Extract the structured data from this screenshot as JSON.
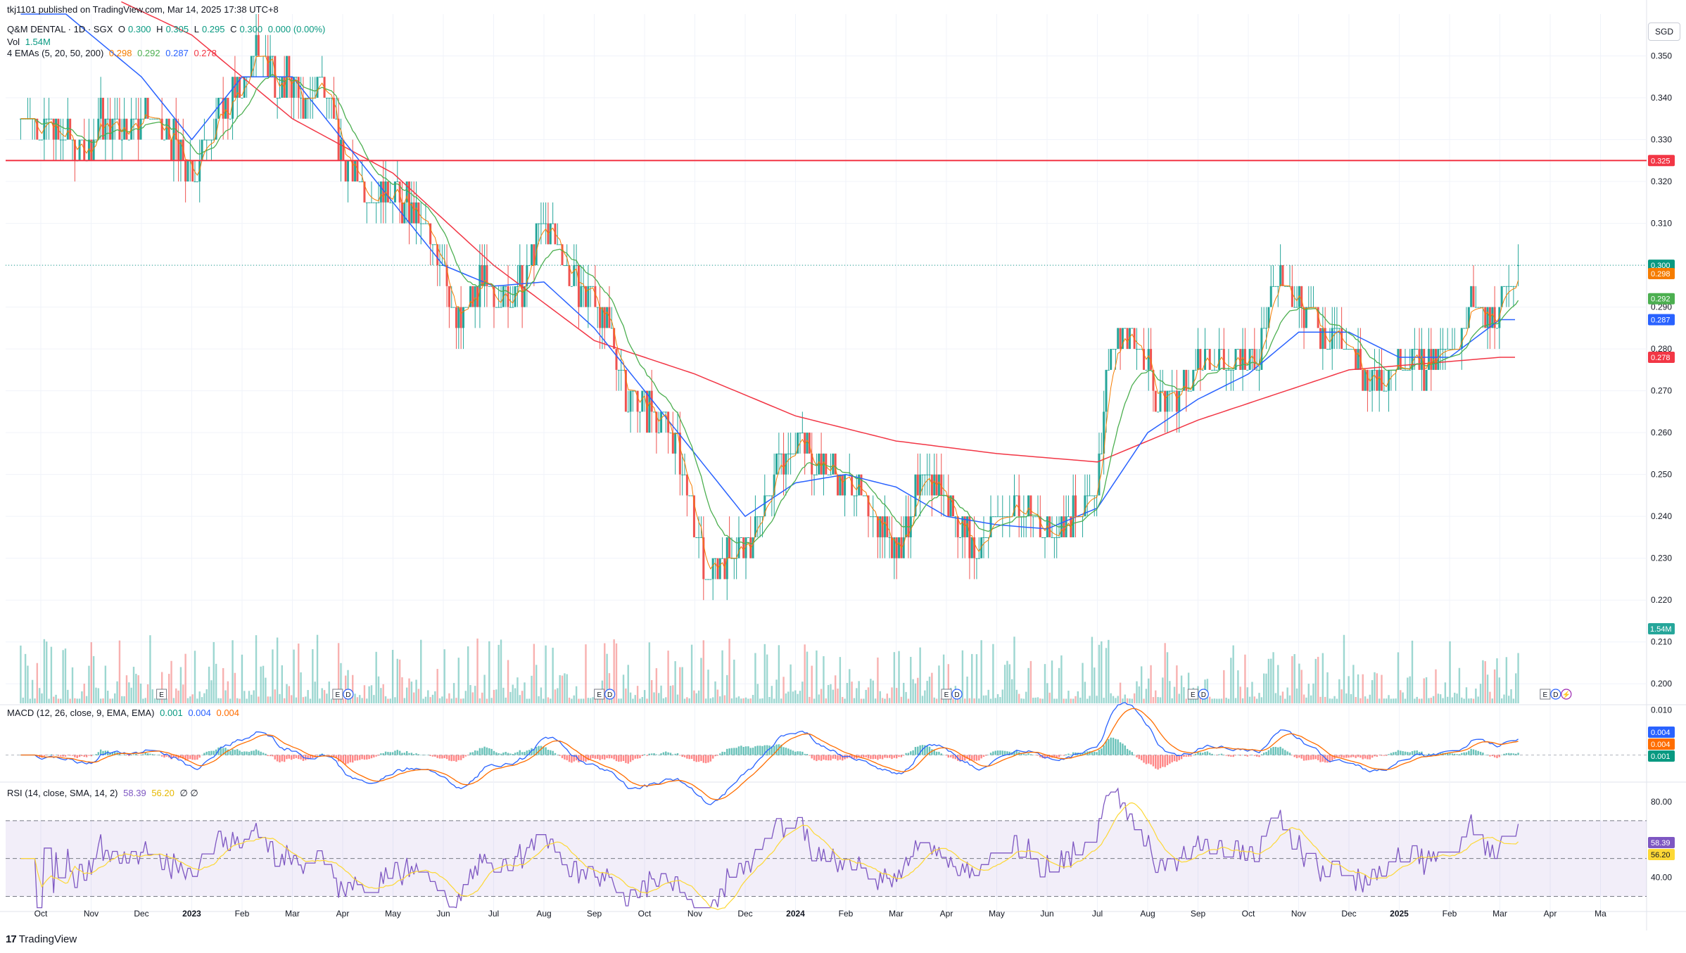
{
  "header": {
    "attribution": "tkj1101 published on TradingView.com, Mar 14, 2025 17:38 UTC+8"
  },
  "legend": {
    "symbol": "Q&M DENTAL · 1D · SGX",
    "o_label": "O",
    "o": "0.300",
    "h_label": "H",
    "h": "0.305",
    "l_label": "L",
    "l": "0.295",
    "c_label": "C",
    "c": "0.300",
    "chg": "0.000 (0.00%)",
    "vol_label": "Vol",
    "vol": "1.54M",
    "ema_label": "4 EMAs (5, 20, 50, 200)",
    "ema5": "0.298",
    "ema20": "0.292",
    "ema50": "0.287",
    "ema200": "0.278",
    "macd_label": "MACD (12, 26, close, 9, EMA, EMA)",
    "macd_hist": "0.001",
    "macd_line": "0.004",
    "macd_signal": "0.004",
    "rsi_label": "RSI (14, close, SMA, 14, 2)",
    "rsi": "58.39",
    "rsi_ma": "56.20",
    "rsi_extra": "∅ ∅"
  },
  "currency": "SGD",
  "footer": {
    "brand_mark": "17",
    "brand": "TradingView"
  },
  "colors": {
    "up": "#26a69a",
    "down": "#ef5350",
    "ema5": "#f57c00",
    "ema20": "#4caf50",
    "ema50": "#2962ff",
    "ema200": "#f23645",
    "hline": "#f23645",
    "rsi": "#7e57c2",
    "rsi_ma": "#fdd835",
    "macd_line": "#2962ff",
    "macd_signal": "#ff6d00"
  },
  "chart_data": {
    "type": "candlestick",
    "ylim": [
      0.195,
      0.36
    ],
    "price_ticks": [
      "0.350",
      "0.340",
      "0.330",
      "0.320",
      "0.310",
      "0.300",
      "0.290",
      "0.280",
      "0.270",
      "0.260",
      "0.250",
      "0.240",
      "0.230",
      "0.220",
      "0.210",
      "0.200"
    ],
    "x_labels": [
      "Oct",
      "Nov",
      "Dec",
      "2023",
      "Feb",
      "Mar",
      "Apr",
      "May",
      "Jun",
      "Jul",
      "Aug",
      "Sep",
      "Oct",
      "Nov",
      "Dec",
      "2024",
      "Feb",
      "Mar",
      "Apr",
      "May",
      "Jun",
      "Jul",
      "Aug",
      "Sep",
      "Oct",
      "Nov",
      "Dec",
      "2025",
      "Feb",
      "Mar",
      "Apr",
      "Ma"
    ],
    "horizontal_line": 0.325,
    "last_close": 0.3,
    "ema_close_keypoints": {
      "ema200": [
        [
          0,
          0.372
        ],
        [
          3,
          0.355
        ],
        [
          5,
          0.335
        ],
        [
          7,
          0.322
        ],
        [
          9,
          0.3
        ],
        [
          10,
          0.291
        ],
        [
          11,
          0.282
        ],
        [
          13,
          0.274
        ],
        [
          15,
          0.264
        ],
        [
          17,
          0.258
        ],
        [
          19,
          0.255
        ],
        [
          21,
          0.253
        ],
        [
          22,
          0.258
        ],
        [
          23,
          0.263
        ],
        [
          24,
          0.267
        ],
        [
          25,
          0.271
        ],
        [
          26,
          0.275
        ],
        [
          27,
          0.276
        ],
        [
          28,
          0.277
        ],
        [
          29,
          0.278
        ]
      ],
      "ema50": [
        [
          0,
          0.365
        ],
        [
          2,
          0.345
        ],
        [
          3,
          0.33
        ],
        [
          4,
          0.345
        ],
        [
          5,
          0.345
        ],
        [
          6,
          0.33
        ],
        [
          7,
          0.315
        ],
        [
          8,
          0.3
        ],
        [
          9,
          0.295
        ],
        [
          10,
          0.296
        ],
        [
          11,
          0.285
        ],
        [
          12,
          0.27
        ],
        [
          13,
          0.255
        ],
        [
          14,
          0.24
        ],
        [
          15,
          0.248
        ],
        [
          16,
          0.25
        ],
        [
          17,
          0.247
        ],
        [
          18,
          0.24
        ],
        [
          19,
          0.238
        ],
        [
          20,
          0.237
        ],
        [
          21,
          0.242
        ],
        [
          22,
          0.26
        ],
        [
          23,
          0.268
        ],
        [
          24,
          0.274
        ],
        [
          25,
          0.284
        ],
        [
          26,
          0.284
        ],
        [
          27,
          0.278
        ],
        [
          28,
          0.278
        ],
        [
          29,
          0.287
        ]
      ]
    },
    "volume_label": "1.54M",
    "macd": {
      "ylim": [
        -0.006,
        0.011
      ],
      "ticks": [
        "0.010"
      ],
      "line": "0.004",
      "signal": "0.004",
      "hist": "0.001"
    },
    "rsi": {
      "ylim": [
        22,
        90
      ],
      "ticks": [
        "80.00",
        "40.00"
      ],
      "upper": 70,
      "middle": 50,
      "lower": 30,
      "value": "58.39",
      "ma": "56.20"
    },
    "event_markers": [
      {
        "month_index": 2.4,
        "labels": [
          "E"
        ]
      },
      {
        "month_index": 5.9,
        "labels": [
          "E",
          "D"
        ]
      },
      {
        "month_index": 11.1,
        "labels": [
          "E",
          "D"
        ]
      },
      {
        "month_index": 18.0,
        "labels": [
          "E",
          "D"
        ]
      },
      {
        "month_index": 22.9,
        "labels": [
          "E",
          "D"
        ]
      },
      {
        "month_index": 29.9,
        "labels": [
          "E",
          "D",
          "⚡"
        ]
      }
    ],
    "price_badges": [
      {
        "value": "0.325",
        "color": "#f23645"
      },
      {
        "value": "0.300",
        "color": "#089981"
      },
      {
        "value": "0.298",
        "color": "#f57c00"
      },
      {
        "value": "0.292",
        "color": "#4caf50"
      },
      {
        "value": "0.287",
        "color": "#2962ff"
      },
      {
        "value": "0.278",
        "color": "#f23645"
      }
    ]
  }
}
